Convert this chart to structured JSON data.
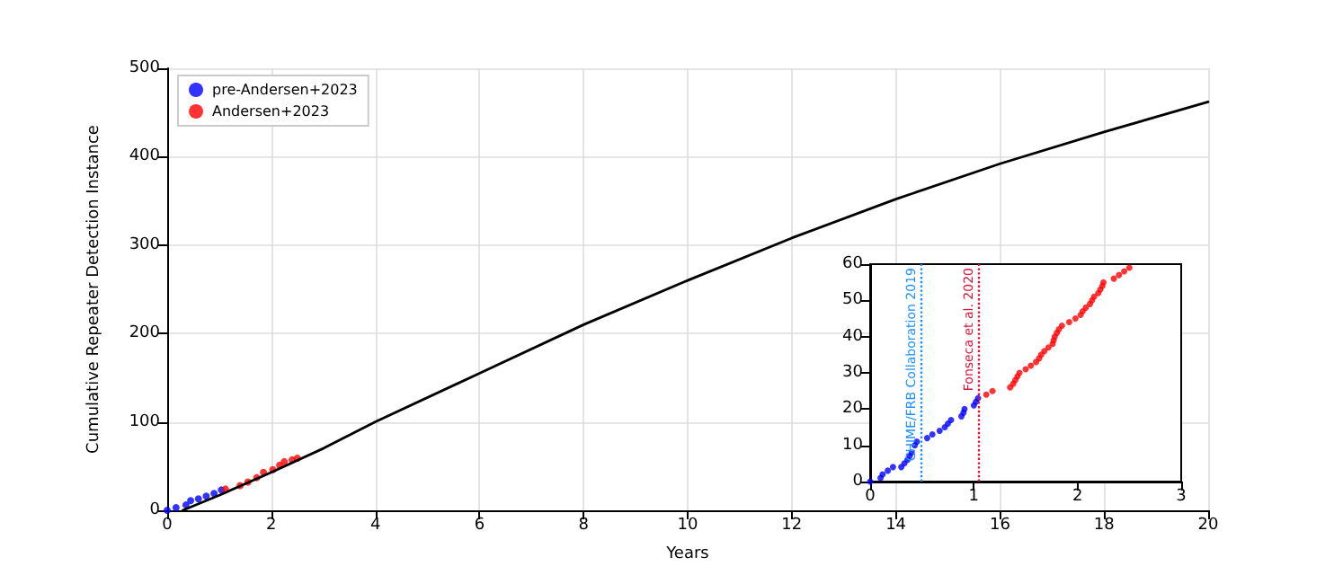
{
  "chart_data": [
    {
      "type": "scatter",
      "xlabel": "Years",
      "ylabel": "Cumulative Repeater Detection Instance",
      "xlim": [
        0,
        20
      ],
      "xticks": [
        0,
        2,
        4,
        6,
        8,
        10,
        12,
        14,
        16,
        18,
        20
      ],
      "ylim": [
        0,
        500
      ],
      "yticks": [
        0,
        100,
        200,
        300,
        400,
        500
      ],
      "grid": true,
      "legend": "top left",
      "marker": "circle",
      "series": [
        {
          "name": "pre-Andersen+2023",
          "color": "#0000ff",
          "x": [
            0,
            0.17,
            0.36,
            0.45,
            0.6,
            0.75,
            0.9,
            1.04
          ],
          "values": [
            0,
            3,
            6,
            11,
            13,
            16,
            19,
            23
          ]
        },
        {
          "name": "Andersen+2023",
          "color": "#ff0000",
          "x": [
            1.12,
            1.4,
            1.55,
            1.72,
            1.85,
            2.03,
            2.16,
            2.25,
            2.4,
            2.5
          ],
          "values": [
            24,
            28,
            32,
            37,
            43,
            46,
            51,
            55,
            57,
            59
          ]
        },
        {
          "type": "line",
          "color": "#000000",
          "marker": "none",
          "line_style": "solid",
          "x": [
            0.3,
            1,
            2,
            3,
            4,
            6,
            8,
            10,
            12,
            14,
            16,
            18,
            20
          ],
          "values": [
            0,
            17,
            43,
            70,
            100,
            155,
            210,
            260,
            308,
            352,
            392,
            428,
            462
          ]
        }
      ]
    },
    {
      "type": "scatter",
      "xlim": [
        0,
        3
      ],
      "xticks": [
        0,
        1,
        2,
        3
      ],
      "ylim": [
        0,
        60
      ],
      "yticks": [
        0,
        10,
        20,
        30,
        40,
        50,
        60
      ],
      "grid": false,
      "legend": false,
      "marker": "circle",
      "series": [
        {
          "color": "#0000ff",
          "x": [
            0,
            0.1,
            0.12,
            0.17,
            0.22,
            0.3,
            0.33,
            0.36,
            0.38,
            0.4,
            0.43,
            0.45,
            0.55,
            0.6,
            0.67,
            0.72,
            0.75,
            0.78,
            0.88,
            0.9,
            0.91,
            1.0,
            1.02,
            1.04
          ],
          "values": [
            0,
            1,
            2,
            3,
            4,
            4,
            5,
            6,
            7,
            8,
            10,
            11,
            12,
            13,
            14,
            15,
            16,
            17,
            18,
            19,
            20,
            21,
            22,
            23
          ]
        },
        {
          "color": "#ff0000",
          "x": [
            1.12,
            1.18,
            1.35,
            1.38,
            1.4,
            1.42,
            1.44,
            1.5,
            1.55,
            1.6,
            1.63,
            1.65,
            1.68,
            1.72,
            1.76,
            1.77,
            1.78,
            1.8,
            1.82,
            1.85,
            1.92,
            1.98,
            2.03,
            2.05,
            2.08,
            2.12,
            2.14,
            2.16,
            2.2,
            2.22,
            2.24,
            2.25,
            2.35,
            2.4,
            2.45,
            2.5
          ],
          "values": [
            24,
            25,
            26,
            27,
            28,
            29,
            30,
            31,
            32,
            33,
            34,
            35,
            36,
            37,
            38,
            39,
            40,
            41,
            42,
            43,
            44,
            45,
            46,
            47,
            48,
            49,
            50,
            51,
            52,
            53,
            54,
            55,
            56,
            57,
            58,
            59
          ]
        }
      ],
      "ref_lines": [
        {
          "axis": "x",
          "value": 0.49,
          "label": "CHIME/FRB Collaboration 2019",
          "color": "#1e90ff",
          "line_style": "dotted"
        },
        {
          "axis": "x",
          "value": 1.05,
          "label": "Fonseca et al. 2020",
          "color": "#dc143c",
          "line_style": "dotted"
        }
      ]
    }
  ]
}
